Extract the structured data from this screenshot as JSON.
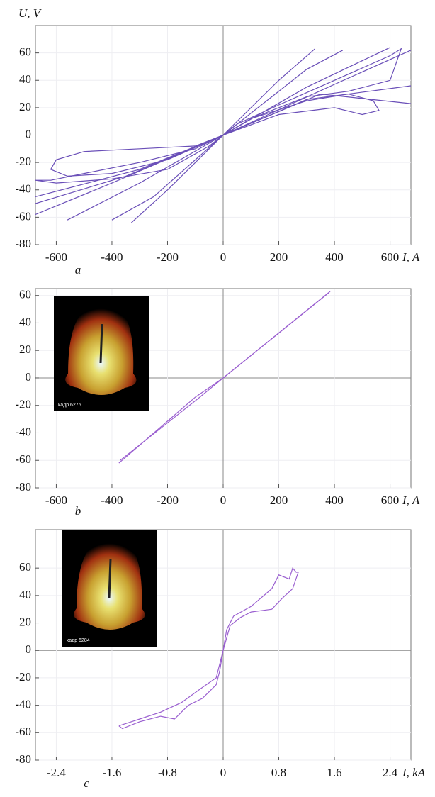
{
  "chart_data": [
    {
      "type": "line",
      "panel_label": "a",
      "y_label": "U, V",
      "x_label": "I, A",
      "xlim": [
        -675,
        675
      ],
      "ylim": [
        -80,
        80
      ],
      "xticks": [
        -600,
        -400,
        -200,
        0,
        200,
        400,
        600
      ],
      "yticks": [
        -80,
        -60,
        -40,
        -20,
        0,
        20,
        40,
        60
      ],
      "grid": true,
      "series": [
        {
          "color": "#6a4fb8",
          "x": [
            -675,
            -600,
            -400,
            -200,
            -50,
            0,
            50,
            200,
            400,
            600,
            640,
            600,
            450,
            300,
            100,
            0,
            -100,
            -300,
            -500,
            -620,
            -675
          ],
          "values": [
            -33,
            -35,
            -32,
            -25,
            -8,
            0,
            8,
            22,
            40,
            58,
            63,
            40,
            32,
            28,
            12,
            0,
            -10,
            -20,
            -28,
            -33,
            -33
          ]
        },
        {
          "color": "#6a4fb8",
          "x": [
            0,
            100,
            300,
            450,
            540,
            560,
            500,
            400,
            200,
            0
          ],
          "values": [
            0,
            12,
            25,
            30,
            25,
            18,
            15,
            20,
            15,
            0
          ]
        },
        {
          "color": "#6a4fb8",
          "x": [
            0,
            -100,
            -300,
            -500,
            -600,
            -620,
            -560,
            -400,
            -200,
            0
          ],
          "values": [
            0,
            -8,
            -10,
            -12,
            -18,
            -25,
            -30,
            -28,
            -18,
            0
          ]
        },
        {
          "color": "#6a4fb8",
          "x": [
            -330,
            -200,
            0,
            200,
            330
          ],
          "values": [
            -64,
            -40,
            0,
            40,
            63
          ]
        },
        {
          "color": "#6a4fb8",
          "x": [
            -560,
            -300,
            0,
            300,
            600
          ],
          "values": [
            -62,
            -35,
            0,
            35,
            64
          ]
        },
        {
          "color": "#6a4fb8",
          "x": [
            -675,
            -400,
            0,
            400,
            675
          ],
          "values": [
            -58,
            -35,
            0,
            37,
            62
          ]
        },
        {
          "color": "#6a4fb8",
          "x": [
            -675,
            -300,
            0,
            300,
            675
          ],
          "values": [
            -45,
            -25,
            0,
            26,
            36
          ]
        },
        {
          "color": "#6a4fb8",
          "x": [
            -400,
            -250,
            0,
            300,
            430
          ],
          "values": [
            -62,
            -45,
            0,
            48,
            62
          ]
        },
        {
          "color": "#6a4fb8",
          "x": [
            -675,
            -350,
            0,
            350,
            675
          ],
          "values": [
            -50,
            -30,
            0,
            30,
            23
          ]
        }
      ]
    },
    {
      "type": "line",
      "panel_label": "b",
      "x_label": "I, A",
      "inset_label": "кадр 6276",
      "xlim": [
        -675,
        675
      ],
      "ylim": [
        -80,
        65
      ],
      "xticks": [
        -600,
        -400,
        -200,
        0,
        200,
        400,
        600
      ],
      "yticks": [
        -80,
        -60,
        -40,
        -20,
        0,
        20,
        40,
        60
      ],
      "grid": true,
      "series": [
        {
          "color": "#9a5fd0",
          "x": [
            -375,
            -100,
            0,
            385
          ],
          "values": [
            -62,
            -14,
            0,
            63
          ]
        },
        {
          "color": "#9a5fd0",
          "x": [
            -370,
            -90,
            0,
            380
          ],
          "values": [
            -60,
            -15,
            0,
            62
          ]
        }
      ]
    },
    {
      "type": "line",
      "panel_label": "c",
      "x_label": "I,  kA",
      "inset_label": "кадр 6284",
      "xlim": [
        -2.7,
        2.7
      ],
      "ylim": [
        -80,
        88
      ],
      "xticks": [
        -2.4,
        -1.6,
        -0.8,
        0,
        0.8,
        1.6,
        2.4
      ],
      "yticks": [
        -80,
        -60,
        -40,
        -20,
        0,
        20,
        40,
        60
      ],
      "grid": true,
      "series": [
        {
          "color": "#9a5fd0",
          "x": [
            -1.5,
            -1.45,
            -1.2,
            -0.9,
            -0.7,
            -0.5,
            -0.3,
            -0.2,
            -0.1,
            -0.05,
            0,
            0.05,
            0.15,
            0.4,
            0.7,
            0.8,
            0.95,
            1.0,
            1.05,
            1.08,
            1.0,
            0.85,
            0.7,
            0.4,
            0.25,
            0.1,
            0,
            -0.1,
            -0.3,
            -0.6,
            -0.9,
            -1.2,
            -1.5
          ],
          "values": [
            -55,
            -57,
            -52,
            -48,
            -50,
            -40,
            -35,
            -30,
            -25,
            -15,
            0,
            15,
            25,
            32,
            45,
            55,
            52,
            60,
            57,
            57,
            45,
            38,
            30,
            28,
            24,
            18,
            0,
            -20,
            -27,
            -38,
            -45,
            -50,
            -55
          ]
        }
      ]
    }
  ]
}
